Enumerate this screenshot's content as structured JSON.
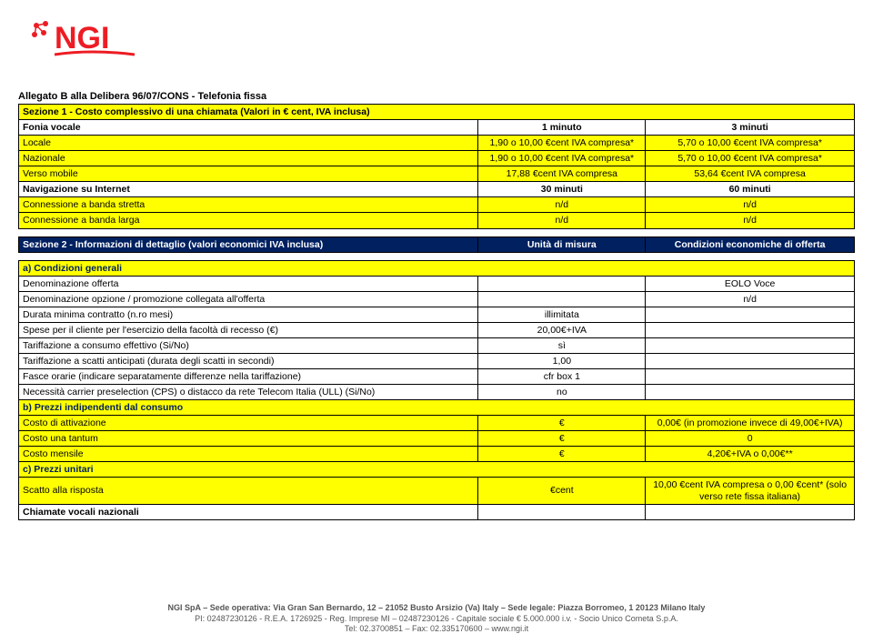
{
  "logo": {
    "brand": "NGI",
    "color": "#ed1c24"
  },
  "doc_title": "Allegato B alla Delibera 96/07/CONS - Telefonia fissa",
  "section1": {
    "title": "Sezione 1 - Costo complessivo di una chiamata (Valori in € cent, IVA inclusa)",
    "rows": [
      {
        "label": "Fonia vocale",
        "v1": "1 minuto",
        "v2": "3 minuti",
        "bold": true,
        "center": true
      },
      {
        "label": "Locale",
        "v1": "1,90 o 10,00 €cent IVA compresa*",
        "v2": "5,70 o 10,00 €cent IVA compresa*",
        "yellow": true
      },
      {
        "label": "Nazionale",
        "v1": "1,90 o 10,00 €cent IVA compresa*",
        "v2": "5,70 o 10,00 €cent IVA compresa*",
        "yellow": true
      },
      {
        "label": "Verso mobile",
        "v1": "17,88 €cent IVA compresa",
        "v2": "53,64 €cent IVA compresa",
        "yellow": true
      },
      {
        "label": "Navigazione su Internet",
        "v1": "30 minuti",
        "v2": "60 minuti",
        "bold": true,
        "center": true
      },
      {
        "label": "Connessione a banda stretta",
        "v1": "n/d",
        "v2": "n/d",
        "yellow": true
      },
      {
        "label": "Connessione a banda larga",
        "v1": "n/d",
        "v2": "n/d",
        "yellow": true
      }
    ]
  },
  "section2": {
    "title": "Sezione 2 - Informazioni di dettaglio (valori economici IVA inclusa)",
    "col_a": "Unità di misura",
    "col_b": "Condizioni economiche di offerta"
  },
  "a": {
    "header": "a) Condizioni generali",
    "rows": [
      {
        "label": "Denominazione offerta",
        "v1": "",
        "v2": "EOLO Voce"
      },
      {
        "label": "Denominazione opzione / promozione collegata all'offerta",
        "v1": "",
        "v2": "n/d"
      },
      {
        "label": "Durata minima contratto (n.ro mesi)",
        "v1": "illimitata",
        "v2": ""
      },
      {
        "label": "Spese per il cliente per l'esercizio della facoltà di recesso (€)",
        "v1": "20,00€+IVA",
        "v2": ""
      },
      {
        "label": "Tariffazione a consumo effettivo (Si/No)",
        "v1": "sì",
        "v2": ""
      },
      {
        "label": "Tariffazione a scatti anticipati (durata degli scatti in secondi)",
        "v1": "1,00",
        "v2": ""
      },
      {
        "label": "Fasce orarie (indicare separatamente differenze nella tariffazione)",
        "v1": "cfr box 1",
        "v2": ""
      },
      {
        "label": "Necessità carrier preselection (CPS) o distacco da rete Telecom Italia (ULL) (Si/No)",
        "v1": "no",
        "v2": ""
      }
    ]
  },
  "b": {
    "header": "b) Prezzi  indipendenti dal consumo",
    "rows": [
      {
        "label": "Costo di attivazione",
        "v1": "€",
        "v2": "0,00€ (in promozione invece di 49,00€+IVA)",
        "yellow": true
      },
      {
        "label": "Costo una tantum",
        "v1": "€",
        "v2": "0",
        "yellow": true
      },
      {
        "label": "Costo mensile",
        "v1": "€",
        "v2": "4,20€+IVA o 0,00€**",
        "yellow": true
      }
    ]
  },
  "c": {
    "header": "c) Prezzi unitari",
    "rows": [
      {
        "label": "Scatto alla risposta",
        "v1": "€cent",
        "v2": "10,00 €cent IVA compresa o 0,00 €cent* (solo verso rete fissa italiana)",
        "yellow": true
      },
      {
        "label": "Chiamate vocali nazionali",
        "v1": "",
        "v2": "",
        "bold": true
      }
    ]
  },
  "footer": {
    "line1": "NGI SpA – Sede operativa: Via Gran San Bernardo, 12 – 21052 Busto Arsizio (Va) Italy – Sede legale: Piazza Borromeo, 1 20123 Milano Italy",
    "line2": "PI: 02487230126 - R.E.A. 1726925 - Reg. Imprese MI – 02487230126 - Capitale sociale € 5.000.000 i.v. - Socio Unico Cometa S.p.A.",
    "line3": "Tel: 02.3700851 – Fax: 02.335170600 – www.ngi.it"
  }
}
